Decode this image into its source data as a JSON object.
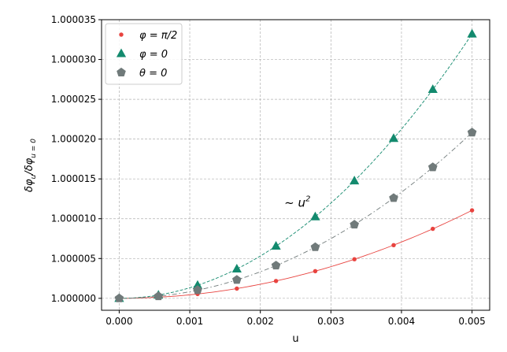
{
  "chart_data": {
    "type": "scatter",
    "xlabel": "u",
    "ylabel": "δφu/δφu=0",
    "xlim": [
      -0.00025,
      0.00525
    ],
    "ylim": [
      0.9999985,
      1.000035
    ],
    "x_ticks": [
      0.0,
      0.001,
      0.002,
      0.003,
      0.004,
      0.005
    ],
    "x_tick_labels": [
      "0.000",
      "0.001",
      "0.002",
      "0.003",
      "0.004",
      "0.005"
    ],
    "y_ticks": [
      1.0,
      1.000005,
      1.00001,
      1.000015,
      1.00002,
      1.000025,
      1.00003,
      1.000035
    ],
    "y_tick_labels": [
      "1.000000",
      "1.000005",
      "1.000010",
      "1.000015",
      "1.000020",
      "1.000025",
      "1.000030",
      "1.000035"
    ],
    "grid": true,
    "legend_position": "top-left",
    "annotation": {
      "text": "~ u",
      "superscript": "2",
      "x": 0.00234,
      "y": 1.0000115
    },
    "x": [
      0.0,
      0.000556,
      0.001111,
      0.001667,
      0.002222,
      0.002778,
      0.003333,
      0.003889,
      0.004444,
      0.005
    ],
    "series": [
      {
        "name": "φ = π/2",
        "label_html": "φ = π/2",
        "color": "#e8433f",
        "marker": "circle",
        "line_style": "solid",
        "values": [
          1.0,
          1.00000034,
          1.00000054,
          1.00000122,
          1.00000218,
          1.00000341,
          1.00000491,
          1.00000668,
          1.00000873,
          1.00001105
        ]
      },
      {
        "name": "φ = 0",
        "color": "#138a6e",
        "marker": "triangle",
        "line_style": "dashed",
        "values": [
          1.0,
          1.00000041,
          1.00000164,
          1.00000369,
          1.00000656,
          1.00001025,
          1.00001476,
          1.00002009,
          1.00002624,
          1.00003321
        ]
      },
      {
        "name": "θ = 0",
        "color": "#707a7a",
        "marker": "pentagon",
        "line_style": "dashdot",
        "values": [
          1.0,
          1.00000026,
          1.00000103,
          1.00000232,
          1.00000412,
          1.00000643,
          1.00000926,
          1.0000126,
          1.00001646,
          1.00002083
        ]
      }
    ]
  }
}
